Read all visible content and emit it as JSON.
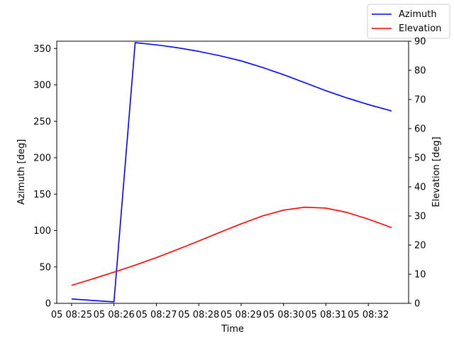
{
  "chart_data": {
    "type": "line",
    "xlabel": "Time",
    "ylabel_left": "Azimuth [deg]",
    "ylabel_right": "Elevation [deg]",
    "x_ticks": [
      "05 08:25",
      "05 08:26",
      "05 08:27",
      "05 08:28",
      "05 08:29",
      "05 08:30",
      "05 08:31",
      "05 08:32"
    ],
    "x_range_minutes": [
      -0.35,
      7.95
    ],
    "ylim_left": [
      0,
      360
    ],
    "ylim_right": [
      0,
      90
    ],
    "y_ticks_left": [
      0,
      50,
      100,
      150,
      200,
      250,
      300,
      350
    ],
    "y_ticks_right": [
      0,
      10,
      20,
      30,
      40,
      50,
      60,
      70,
      80,
      90
    ],
    "grid": false,
    "legend_position": "top-right",
    "series": [
      {
        "name": "Azimuth",
        "axis": "left",
        "color": "#0000ff",
        "x": [
          0,
          1,
          1.5,
          2,
          2.5,
          3,
          3.5,
          4,
          4.5,
          5,
          5.5,
          6,
          6.5,
          7,
          7.5,
          7.55
        ],
        "values": [
          6,
          2,
          358,
          355,
          351,
          346,
          340,
          333,
          324,
          314,
          303,
          292,
          282,
          273,
          265,
          264
        ]
      },
      {
        "name": "Elevation",
        "axis": "right",
        "color": "#ff0000",
        "x": [
          0,
          0.5,
          1,
          1.5,
          2,
          2.5,
          3,
          3.5,
          4,
          4.5,
          5,
          5.5,
          6,
          6.5,
          7,
          7.55
        ],
        "values": [
          6.2,
          8.4,
          10.7,
          13.1,
          15.7,
          18.5,
          21.4,
          24.4,
          27.3,
          30,
          32,
          33,
          32.7,
          31.2,
          28.9,
          26
        ]
      }
    ]
  }
}
